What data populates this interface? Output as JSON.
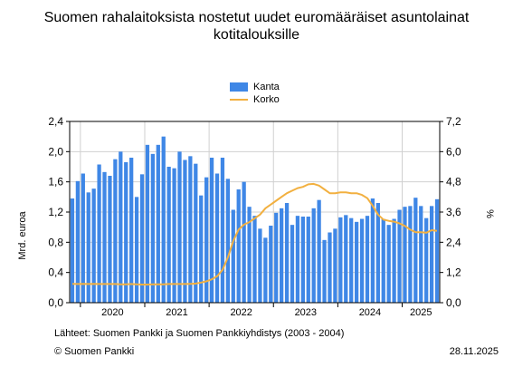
{
  "title_lines": [
    "Suomen rahalaitoksista nostetut uudet euromääräiset asuntolainat",
    "kotitalouksille"
  ],
  "legend": {
    "kanta": "Kanta",
    "korko": "Korko"
  },
  "footer": {
    "source": "Lähteet: Suomen Pankki ja Suomen Pankkiyhdistys (2003 - 2004)",
    "copyright": "© Suomen Pankki",
    "date": "28.11.2025"
  },
  "colors": {
    "bar": "#3f87e6",
    "line": "#f2b040",
    "axis": "#000000",
    "grid": "#d0d0d0"
  },
  "chart_data": {
    "type": "bar",
    "title": "Suomen rahalaitoksista nostetut uudet euromääräiset asuntolainat kotitalouksille",
    "ylabel": "Mrd. euroa",
    "y2label": "%",
    "ylim": [
      0,
      2.4
    ],
    "y2lim": [
      0,
      7.2
    ],
    "yticks": [
      "0,0",
      "0,4",
      "0,8",
      "1,2",
      "1,6",
      "2,0",
      "2,4"
    ],
    "y2ticks": [
      "0,0",
      "1,2",
      "2,4",
      "3,6",
      "4,8",
      "6,0",
      "7,2"
    ],
    "year_labels": [
      "2020",
      "2021",
      "2022",
      "2023",
      "2024",
      "2025"
    ],
    "grid": true,
    "legend_position": "top-center",
    "series": [
      {
        "name": "Kanta",
        "type": "bar",
        "axis": "left",
        "values": [
          1.38,
          1.61,
          1.71,
          1.46,
          1.51,
          1.83,
          1.73,
          1.68,
          1.9,
          2.0,
          1.86,
          1.92,
          1.4,
          1.7,
          2.09,
          1.97,
          2.09,
          2.2,
          1.8,
          1.78,
          2.0,
          1.89,
          1.94,
          1.84,
          1.42,
          1.66,
          1.92,
          1.71,
          1.92,
          1.64,
          1.23,
          1.5,
          1.6,
          1.27,
          1.15,
          0.98,
          0.86,
          1.02,
          1.19,
          1.25,
          1.32,
          1.03,
          1.15,
          1.14,
          1.14,
          1.25,
          1.36,
          0.83,
          0.93,
          0.98,
          1.13,
          1.16,
          1.12,
          1.07,
          1.11,
          1.15,
          1.38,
          1.32,
          1.11,
          1.03,
          1.11,
          1.23,
          1.27,
          1.28,
          1.39,
          1.28,
          1.12,
          1.28,
          1.37
        ]
      },
      {
        "name": "Korko",
        "type": "line",
        "axis": "right",
        "values": [
          0.75,
          0.74,
          0.75,
          0.74,
          0.75,
          0.74,
          0.74,
          0.74,
          0.74,
          0.73,
          0.73,
          0.74,
          0.73,
          0.72,
          0.72,
          0.73,
          0.73,
          0.73,
          0.74,
          0.74,
          0.74,
          0.74,
          0.75,
          0.76,
          0.8,
          0.85,
          0.93,
          1.05,
          1.3,
          1.8,
          2.45,
          2.9,
          3.1,
          3.2,
          3.35,
          3.5,
          3.75,
          3.9,
          4.05,
          4.2,
          4.35,
          4.45,
          4.55,
          4.6,
          4.7,
          4.72,
          4.65,
          4.5,
          4.35,
          4.35,
          4.38,
          4.38,
          4.35,
          4.35,
          4.28,
          4.15,
          3.85,
          3.5,
          3.3,
          3.25,
          3.22,
          3.15,
          3.05,
          2.9,
          2.8,
          2.8,
          2.78,
          2.88,
          2.85
        ]
      }
    ]
  }
}
